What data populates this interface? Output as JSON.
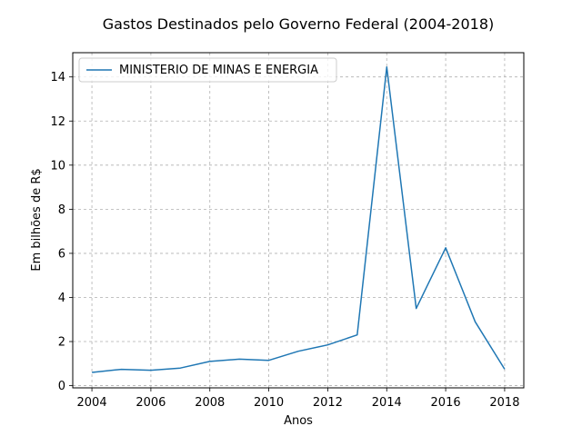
{
  "chart_data": {
    "type": "line",
    "title": "Gastos Destinados pelo Governo Federal (2004-2018)",
    "xlabel": "Anos",
    "ylabel": "Em bilhões de R$",
    "xlim": [
      2003.35,
      2018.65
    ],
    "ylim": [
      -0.1,
      15.1
    ],
    "x_ticks": [
      2004,
      2006,
      2008,
      2010,
      2012,
      2014,
      2016,
      2018
    ],
    "y_ticks": [
      0,
      2,
      4,
      6,
      8,
      10,
      12,
      14
    ],
    "grid": true,
    "legend_position": "top-left",
    "series": [
      {
        "name": "MINISTERIO DE MINAS E ENERGIA",
        "color": "#1f77b4",
        "x": [
          2004,
          2005,
          2006,
          2007,
          2008,
          2009,
          2010,
          2011,
          2012,
          2013,
          2014,
          2015,
          2016,
          2017,
          2018
        ],
        "y": [
          0.6,
          0.74,
          0.7,
          0.8,
          1.1,
          1.2,
          1.15,
          1.56,
          1.85,
          2.3,
          14.45,
          3.5,
          6.25,
          2.9,
          0.75
        ]
      }
    ]
  }
}
